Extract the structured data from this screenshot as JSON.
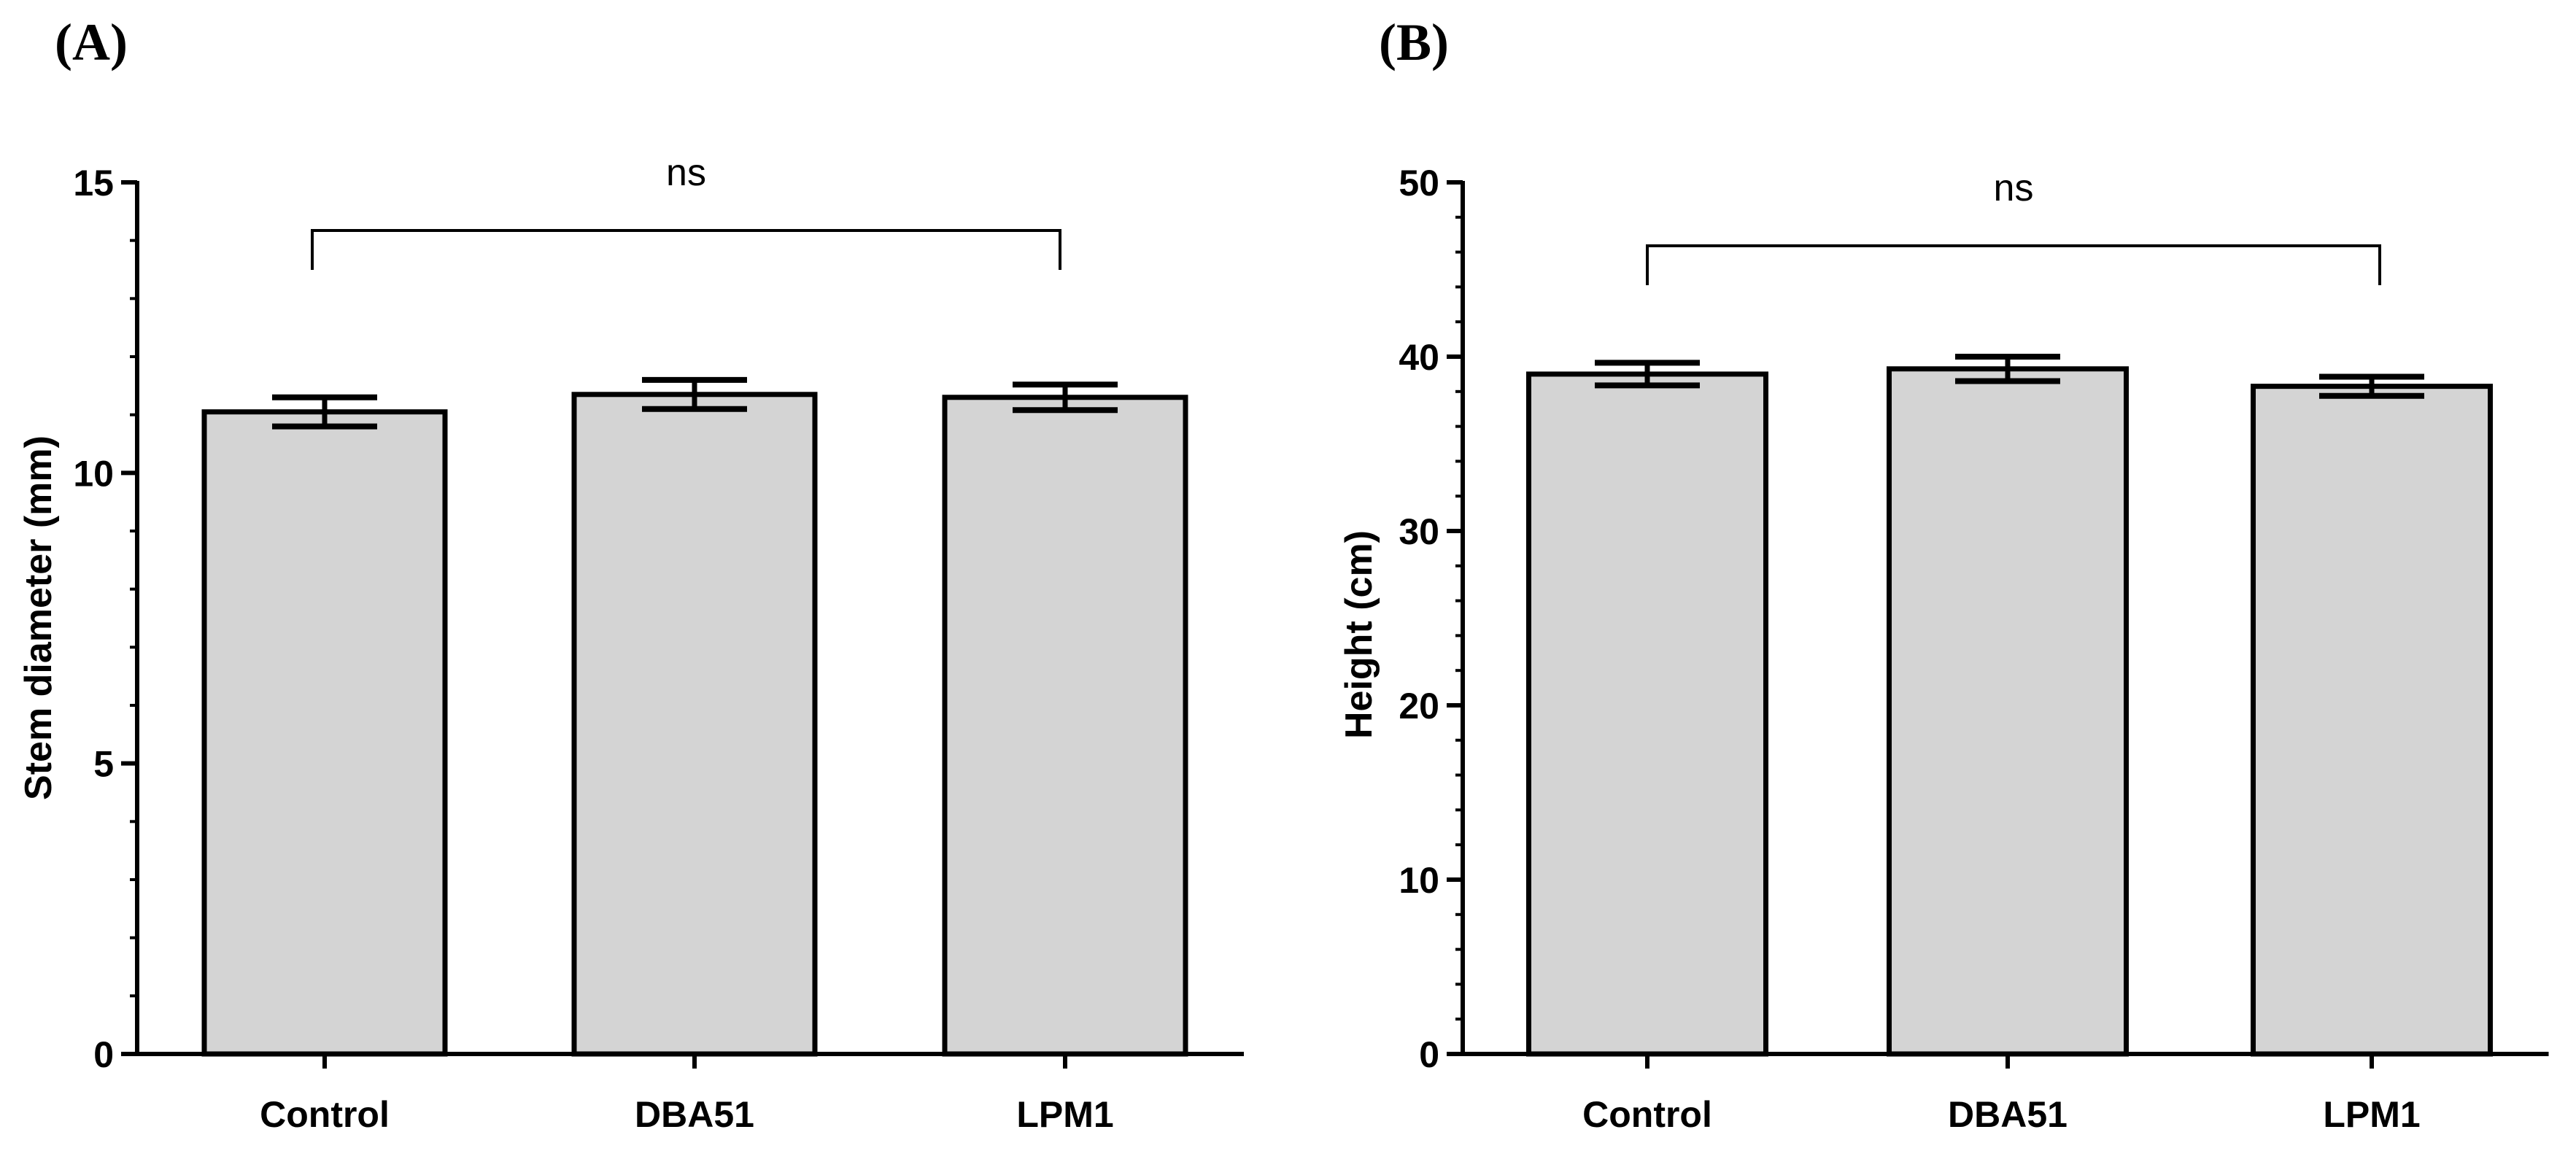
{
  "chart_data": [
    {
      "type": "bar",
      "panel_label": "(A)",
      "categories": [
        "Control",
        "DBA51",
        "LPM1"
      ],
      "values": [
        11.05,
        11.35,
        11.3
      ],
      "errors": [
        0.25,
        0.25,
        0.22
      ],
      "ylabel": "Stem diameter (mm)",
      "xlabel": "",
      "ylim": [
        0,
        15
      ],
      "yticks": [
        0,
        5,
        10,
        15
      ],
      "yticks_minor_step": 1,
      "bar_color": "#d4d4d4",
      "edge_color": "#000000",
      "significance": {
        "from": "Control",
        "to": "LPM1",
        "label": "ns",
        "y": 14.2
      }
    },
    {
      "type": "bar",
      "panel_label": "(B)",
      "categories": [
        "Control",
        "DBA51",
        "LPM1"
      ],
      "values": [
        39.0,
        39.3,
        38.3
      ],
      "errors": [
        0.65,
        0.7,
        0.55
      ],
      "ylabel": "Height (cm)",
      "xlabel": "",
      "ylim": [
        0,
        50
      ],
      "yticks": [
        0,
        10,
        20,
        30,
        40,
        50
      ],
      "yticks_minor_step": 2,
      "bar_color": "#d4d4d4",
      "edge_color": "#000000",
      "significance": {
        "from": "Control",
        "to": "LPM1",
        "label": "ns",
        "y": 46.3
      }
    }
  ]
}
